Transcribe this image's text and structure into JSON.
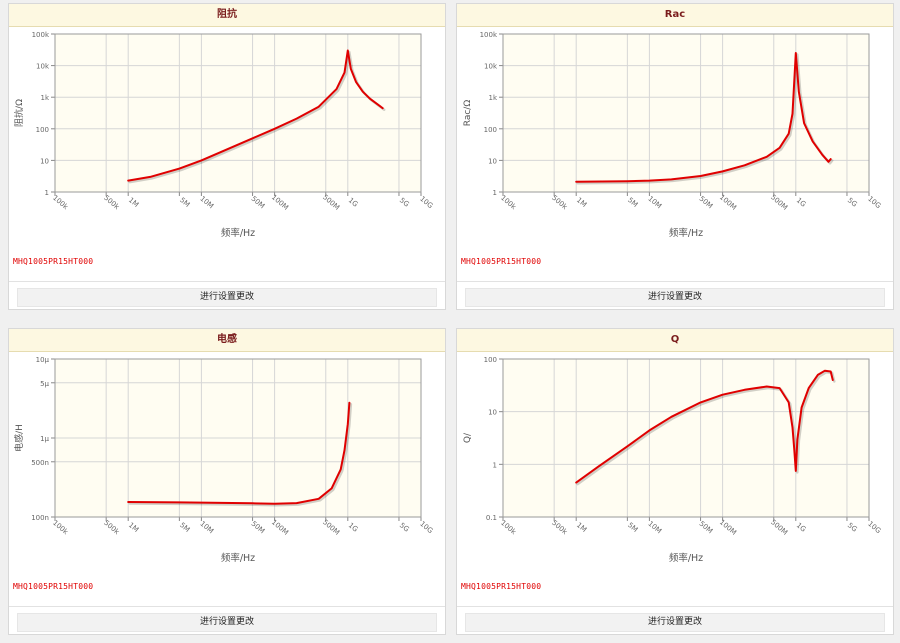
{
  "part_number": "MHQ1005PR15HT000",
  "button_label": "进行设置更改",
  "colors": {
    "curve": "#e00000",
    "header_bg": "#fdf8e1",
    "plot_bg": "#fffdf2",
    "title": "#7a1c1c"
  },
  "chart_data": [
    {
      "type": "line",
      "title": "阻抗",
      "xlabel": "频率/Hz",
      "ylabel": "阻抗/Ω",
      "xscale": "log",
      "yscale": "log",
      "xlim": [
        100000,
        10000000000
      ],
      "ylim": [
        1,
        100000
      ],
      "grid": true,
      "xticks": [
        [
          100000,
          "100k"
        ],
        [
          500000,
          "500k"
        ],
        [
          1000000,
          "1M"
        ],
        [
          5000000,
          "5M"
        ],
        [
          10000000,
          "10M"
        ],
        [
          50000000,
          "50M"
        ],
        [
          100000000,
          "100M"
        ],
        [
          500000000,
          "500M"
        ],
        [
          1000000000,
          "1G"
        ],
        [
          5000000000,
          "5G"
        ],
        [
          10000000000,
          "10G"
        ]
      ],
      "yticks": [
        [
          1,
          "1"
        ],
        [
          10,
          "10"
        ],
        [
          100,
          "100"
        ],
        [
          1000,
          "1k"
        ],
        [
          10000,
          "10k"
        ],
        [
          100000,
          "100k"
        ]
      ],
      "series": [
        {
          "x": [
            1000000,
            2000000,
            5000000,
            10000000,
            20000000,
            50000000,
            100000000,
            200000000,
            400000000,
            700000000,
            900000000,
            1000000000,
            1100000000,
            1300000000,
            1600000000,
            2000000000,
            3000000000
          ],
          "y": [
            2.3,
            3.0,
            5.5,
            10,
            20,
            50,
            100,
            210,
            500,
            1800,
            6000,
            30000,
            8000,
            3000,
            1500,
            900,
            450
          ]
        }
      ]
    },
    {
      "type": "line",
      "title": "Rac",
      "xlabel": "频率/Hz",
      "ylabel": "Rac/Ω",
      "xscale": "log",
      "yscale": "log",
      "xlim": [
        100000,
        10000000000
      ],
      "ylim": [
        1,
        100000
      ],
      "grid": true,
      "xticks": [
        [
          100000,
          "100k"
        ],
        [
          500000,
          "500k"
        ],
        [
          1000000,
          "1M"
        ],
        [
          5000000,
          "5M"
        ],
        [
          10000000,
          "10M"
        ],
        [
          50000000,
          "50M"
        ],
        [
          100000000,
          "100M"
        ],
        [
          500000000,
          "500M"
        ],
        [
          1000000000,
          "1G"
        ],
        [
          5000000000,
          "5G"
        ],
        [
          10000000000,
          "10G"
        ]
      ],
      "yticks": [
        [
          1,
          "1"
        ],
        [
          10,
          "10"
        ],
        [
          100,
          "100"
        ],
        [
          1000,
          "1k"
        ],
        [
          10000,
          "10k"
        ],
        [
          100000,
          "100k"
        ]
      ],
      "series": [
        {
          "x": [
            1000000,
            5000000,
            10000000,
            20000000,
            50000000,
            100000000,
            200000000,
            400000000,
            600000000,
            800000000,
            900000000,
            1000000000,
            1100000000,
            1300000000,
            1700000000,
            2300000000,
            2800000000,
            3000000000
          ],
          "y": [
            2.1,
            2.2,
            2.3,
            2.5,
            3.2,
            4.5,
            7,
            13,
            25,
            70,
            300,
            25000,
            1500,
            150,
            40,
            15,
            9,
            11
          ]
        }
      ]
    },
    {
      "type": "line",
      "title": "电感",
      "xlabel": "频率/Hz",
      "ylabel": "电感/H",
      "xscale": "log",
      "yscale": "log",
      "xlim": [
        100000,
        10000000000
      ],
      "ylim": [
        1e-07,
        1e-05
      ],
      "grid": true,
      "xticks": [
        [
          100000,
          "100k"
        ],
        [
          500000,
          "500k"
        ],
        [
          1000000,
          "1M"
        ],
        [
          5000000,
          "5M"
        ],
        [
          10000000,
          "10M"
        ],
        [
          50000000,
          "50M"
        ],
        [
          100000000,
          "100M"
        ],
        [
          500000000,
          "500M"
        ],
        [
          1000000000,
          "1G"
        ],
        [
          5000000000,
          "5G"
        ],
        [
          10000000000,
          "10G"
        ]
      ],
      "yticks": [
        [
          1e-07,
          "100n"
        ],
        [
          5e-07,
          "500n"
        ],
        [
          1e-06,
          "1μ"
        ],
        [
          5e-06,
          "5μ"
        ],
        [
          1e-05,
          "10μ"
        ]
      ],
      "series": [
        {
          "x": [
            1000000,
            5000000,
            10000000,
            50000000,
            100000000,
            200000000,
            400000000,
            600000000,
            800000000,
            900000000,
            1000000000,
            1050000000
          ],
          "y": [
            1.55e-07,
            1.53e-07,
            1.52e-07,
            1.49e-07,
            1.47e-07,
            1.5e-07,
            1.7e-07,
            2.3e-07,
            4e-07,
            7e-07,
            1.5e-06,
            2.8e-06
          ]
        }
      ]
    },
    {
      "type": "line",
      "title": "Q",
      "xlabel": "频率/Hz",
      "ylabel": "Q/",
      "xscale": "log",
      "yscale": "log",
      "xlim": [
        100000,
        10000000000
      ],
      "ylim": [
        0.1,
        100
      ],
      "grid": true,
      "xticks": [
        [
          100000,
          "100k"
        ],
        [
          500000,
          "500k"
        ],
        [
          1000000,
          "1M"
        ],
        [
          5000000,
          "5M"
        ],
        [
          10000000,
          "10M"
        ],
        [
          50000000,
          "50M"
        ],
        [
          100000000,
          "100M"
        ],
        [
          500000000,
          "500M"
        ],
        [
          1000000000,
          "1G"
        ],
        [
          5000000000,
          "5G"
        ],
        [
          10000000000,
          "10G"
        ]
      ],
      "yticks": [
        [
          0.1,
          "0.1"
        ],
        [
          1,
          "1"
        ],
        [
          10,
          "10"
        ],
        [
          100,
          "100"
        ]
      ],
      "series": [
        {
          "x": [
            1000000,
            2000000,
            5000000,
            10000000,
            20000000,
            50000000,
            100000000,
            200000000,
            400000000,
            600000000,
            800000000,
            900000000,
            950000000,
            1000000000,
            1050000000,
            1200000000,
            1500000000,
            2000000000,
            2500000000,
            3000000000,
            3200000000
          ],
          "y": [
            0.45,
            0.9,
            2.2,
            4.4,
            8,
            15,
            21,
            26,
            30,
            28,
            15,
            5,
            2,
            0.75,
            3,
            12,
            28,
            50,
            60,
            58,
            40
          ]
        }
      ]
    }
  ]
}
